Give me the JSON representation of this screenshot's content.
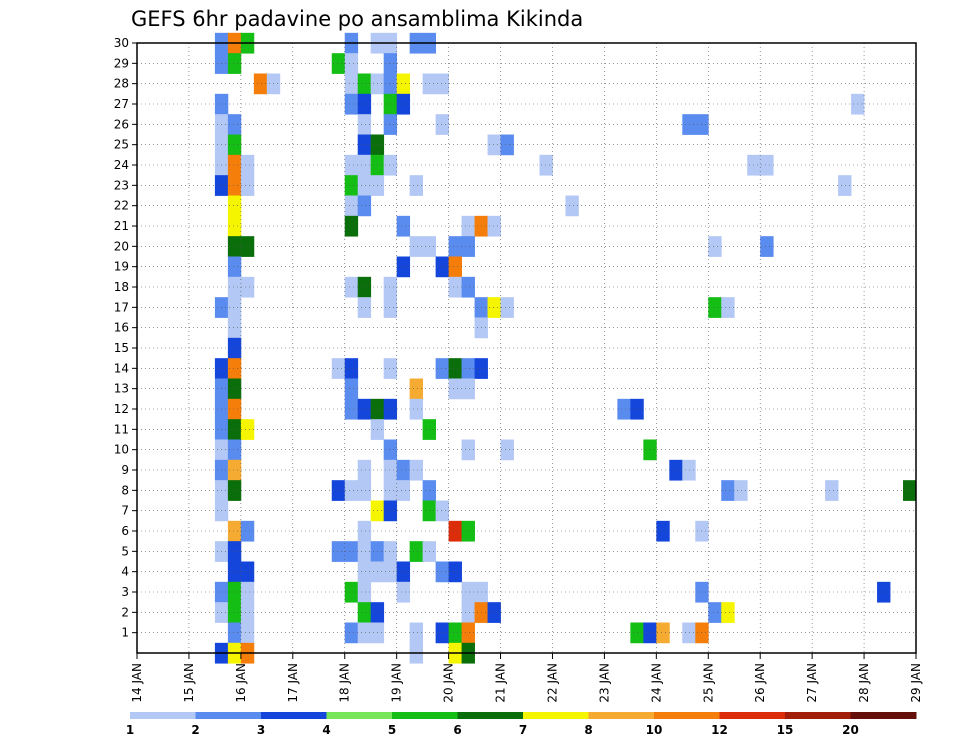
{
  "chart_data": {
    "type": "heatmap",
    "title": "GEFS 6hr padavine po ansamblima Kikinda",
    "xlabel": "",
    "ylabel": "",
    "x_tick_labels": [
      "14 JAN",
      "15 JAN",
      "16 JAN",
      "17 JAN",
      "18 JAN",
      "19 JAN",
      "20 JAN",
      "21 JAN",
      "22 JAN",
      "23 JAN",
      "24 JAN",
      "25 JAN",
      "26 JAN",
      "27 JAN",
      "28 JAN",
      "29 JAN"
    ],
    "x_days_range": [
      14,
      29
    ],
    "y_tick_labels": [
      "1",
      "2",
      "3",
      "4",
      "5",
      "6",
      "7",
      "8",
      "9",
      "10",
      "11",
      "12",
      "13",
      "14",
      "15",
      "16",
      "17",
      "18",
      "19",
      "20",
      "21",
      "22",
      "23",
      "24",
      "25",
      "26",
      "27",
      "28",
      "29",
      "30"
    ],
    "y_range": [
      0,
      30
    ],
    "time_step_hours": 6,
    "grid": true,
    "legend": {
      "placement": "bottom",
      "labels": [
        "1",
        "2",
        "3",
        "4",
        "5",
        "6",
        "7",
        "8",
        "10",
        "12",
        "15",
        "20"
      ],
      "colors": [
        "#b4c8f5",
        "#5a8cf0",
        "#1446dc",
        "#78e65a",
        "#14be14",
        "#0a6e0a",
        "#f5f500",
        "#f5aa32",
        "#f57d0a",
        "#dc2d0a",
        "#a01e0a",
        "#640f0a"
      ]
    },
    "cells": [
      [
        30,
        15.5,
        2
      ],
      [
        30,
        15.75,
        10
      ],
      [
        30,
        16,
        5
      ],
      [
        30,
        18,
        2
      ],
      [
        30,
        18.5,
        1
      ],
      [
        30,
        18.75,
        1
      ],
      [
        30,
        19.25,
        2
      ],
      [
        30,
        19.5,
        2
      ],
      [
        29,
        15.5,
        2
      ],
      [
        29,
        15.75,
        5
      ],
      [
        29,
        17.75,
        5
      ],
      [
        29,
        18,
        1
      ],
      [
        29,
        18.75,
        2
      ],
      [
        28,
        16.25,
        10
      ],
      [
        28,
        16.5,
        1
      ],
      [
        28,
        18,
        1
      ],
      [
        28,
        18.25,
        5
      ],
      [
        28,
        18.5,
        1
      ],
      [
        28,
        18.75,
        2
      ],
      [
        28,
        19,
        7
      ],
      [
        28,
        19.5,
        1
      ],
      [
        28,
        19.75,
        1
      ],
      [
        27,
        15.5,
        2
      ],
      [
        27,
        18,
        2
      ],
      [
        27,
        18.25,
        3
      ],
      [
        27,
        18.75,
        5
      ],
      [
        27,
        19,
        3
      ],
      [
        27,
        27.75,
        1
      ],
      [
        26,
        15.5,
        1
      ],
      [
        26,
        15.75,
        2
      ],
      [
        26,
        18.25,
        1
      ],
      [
        26,
        18.75,
        2
      ],
      [
        26,
        19.75,
        1
      ],
      [
        26,
        24.5,
        2
      ],
      [
        26,
        24.75,
        2
      ],
      [
        25,
        15.5,
        1
      ],
      [
        25,
        15.75,
        5
      ],
      [
        25,
        18.25,
        3
      ],
      [
        25,
        18.5,
        6
      ],
      [
        25,
        20.75,
        1
      ],
      [
        25,
        21,
        2
      ],
      [
        24,
        15.5,
        1
      ],
      [
        24,
        15.75,
        10
      ],
      [
        24,
        16,
        1
      ],
      [
        24,
        18,
        1
      ],
      [
        24,
        18.25,
        1
      ],
      [
        24,
        18.5,
        5
      ],
      [
        24,
        18.75,
        1
      ],
      [
        24,
        21.75,
        1
      ],
      [
        24,
        25.75,
        1
      ],
      [
        24,
        26,
        1
      ],
      [
        23,
        15.5,
        3
      ],
      [
        23,
        15.75,
        10
      ],
      [
        23,
        16,
        1
      ],
      [
        23,
        18,
        5
      ],
      [
        23,
        18.25,
        1
      ],
      [
        23,
        18.5,
        1
      ],
      [
        23,
        19.25,
        1
      ],
      [
        23,
        27.5,
        1
      ],
      [
        22,
        15.75,
        7
      ],
      [
        22,
        18,
        1
      ],
      [
        22,
        18.25,
        2
      ],
      [
        22,
        22.25,
        1
      ],
      [
        21,
        15.75,
        7
      ],
      [
        21,
        18,
        6
      ],
      [
        21,
        19,
        2
      ],
      [
        21,
        20.25,
        1
      ],
      [
        21,
        20.5,
        10
      ],
      [
        21,
        20.75,
        1
      ],
      [
        20,
        15.75,
        6
      ],
      [
        20,
        16,
        6
      ],
      [
        20,
        19.25,
        1
      ],
      [
        20,
        19.5,
        1
      ],
      [
        20,
        20,
        2
      ],
      [
        20,
        20.25,
        2
      ],
      [
        20,
        25,
        1
      ],
      [
        20,
        26,
        2
      ],
      [
        19,
        15.75,
        2
      ],
      [
        19,
        19,
        3
      ],
      [
        19,
        19.75,
        3
      ],
      [
        19,
        20,
        10
      ],
      [
        18,
        15.75,
        1
      ],
      [
        18,
        16,
        1
      ],
      [
        18,
        18,
        1
      ],
      [
        18,
        18.25,
        6
      ],
      [
        18,
        18.75,
        1
      ],
      [
        18,
        20,
        1
      ],
      [
        18,
        20.25,
        2
      ],
      [
        17,
        15.5,
        2
      ],
      [
        17,
        15.75,
        1
      ],
      [
        17,
        18.25,
        1
      ],
      [
        17,
        18.75,
        1
      ],
      [
        17,
        20.5,
        2
      ],
      [
        17,
        20.75,
        7
      ],
      [
        17,
        21,
        1
      ],
      [
        17,
        25,
        5
      ],
      [
        17,
        25.25,
        1
      ],
      [
        16,
        15.75,
        1
      ],
      [
        16,
        20.5,
        1
      ],
      [
        15,
        15.75,
        3
      ],
      [
        14,
        15.5,
        3
      ],
      [
        14,
        15.75,
        10
      ],
      [
        14,
        17.75,
        1
      ],
      [
        14,
        18,
        3
      ],
      [
        14,
        18.75,
        1
      ],
      [
        14,
        19.75,
        2
      ],
      [
        14,
        20,
        6
      ],
      [
        14,
        20.25,
        2
      ],
      [
        14,
        20.5,
        3
      ],
      [
        13,
        15.5,
        2
      ],
      [
        13,
        15.75,
        6
      ],
      [
        13,
        18,
        2
      ],
      [
        13,
        19.25,
        8
      ],
      [
        13,
        20,
        1
      ],
      [
        13,
        20.25,
        1
      ],
      [
        12,
        15.5,
        2
      ],
      [
        12,
        15.75,
        10
      ],
      [
        12,
        18,
        2
      ],
      [
        12,
        18.25,
        3
      ],
      [
        12,
        18.5,
        6
      ],
      [
        12,
        18.75,
        3
      ],
      [
        12,
        19.25,
        1
      ],
      [
        12,
        23.25,
        2
      ],
      [
        12,
        23.5,
        3
      ],
      [
        11,
        15.5,
        2
      ],
      [
        11,
        15.75,
        6
      ],
      [
        11,
        16,
        7
      ],
      [
        11,
        18.5,
        1
      ],
      [
        11,
        19.5,
        5
      ],
      [
        10,
        15.5,
        1
      ],
      [
        10,
        15.75,
        2
      ],
      [
        10,
        18.75,
        2
      ],
      [
        10,
        20.25,
        1
      ],
      [
        10,
        21,
        1
      ],
      [
        10,
        23.75,
        5
      ],
      [
        9,
        15.5,
        2
      ],
      [
        9,
        15.75,
        8
      ],
      [
        9,
        18.25,
        1
      ],
      [
        9,
        18.75,
        1
      ],
      [
        9,
        19,
        2
      ],
      [
        9,
        19.25,
        1
      ],
      [
        9,
        24.25,
        3
      ],
      [
        9,
        24.5,
        1
      ],
      [
        8,
        15.5,
        1
      ],
      [
        8,
        15.75,
        6
      ],
      [
        8,
        17.75,
        3
      ],
      [
        8,
        18,
        1
      ],
      [
        8,
        18.25,
        1
      ],
      [
        8,
        18.75,
        1
      ],
      [
        8,
        19,
        1
      ],
      [
        8,
        19.5,
        2
      ],
      [
        8,
        25.25,
        2
      ],
      [
        8,
        25.5,
        1
      ],
      [
        8,
        27.25,
        1
      ],
      [
        8,
        28.75,
        6
      ],
      [
        7,
        15.5,
        1
      ],
      [
        7,
        18.5,
        7
      ],
      [
        7,
        18.75,
        3
      ],
      [
        7,
        19.5,
        5
      ],
      [
        7,
        19.75,
        1
      ],
      [
        6,
        15.75,
        8
      ],
      [
        6,
        16,
        2
      ],
      [
        6,
        18.25,
        1
      ],
      [
        6,
        20,
        13
      ],
      [
        6,
        20.25,
        5
      ],
      [
        6,
        24,
        3
      ],
      [
        6,
        24.75,
        1
      ],
      [
        5,
        15.5,
        1
      ],
      [
        5,
        15.75,
        3
      ],
      [
        5,
        17.75,
        2
      ],
      [
        5,
        18,
        2
      ],
      [
        5,
        18.25,
        1
      ],
      [
        5,
        18.5,
        2
      ],
      [
        5,
        18.75,
        1
      ],
      [
        5,
        19.25,
        5
      ],
      [
        5,
        19.5,
        1
      ],
      [
        4,
        15.75,
        3
      ],
      [
        4,
        16,
        3
      ],
      [
        4,
        18.25,
        1
      ],
      [
        4,
        18.5,
        1
      ],
      [
        4,
        18.75,
        1
      ],
      [
        4,
        19,
        3
      ],
      [
        4,
        19.75,
        2
      ],
      [
        4,
        20,
        3
      ],
      [
        3,
        15.5,
        2
      ],
      [
        3,
        15.75,
        5
      ],
      [
        3,
        16,
        1
      ],
      [
        3,
        18,
        5
      ],
      [
        3,
        18.25,
        1
      ],
      [
        3,
        19,
        1
      ],
      [
        3,
        20.25,
        1
      ],
      [
        3,
        20.5,
        1
      ],
      [
        3,
        24.75,
        2
      ],
      [
        3,
        28.25,
        3
      ],
      [
        2,
        15.5,
        1
      ],
      [
        2,
        15.75,
        5
      ],
      [
        2,
        16,
        1
      ],
      [
        2,
        18.25,
        5
      ],
      [
        2,
        18.5,
        3
      ],
      [
        2,
        20.25,
        1
      ],
      [
        2,
        20.5,
        10
      ],
      [
        2,
        20.75,
        3
      ],
      [
        2,
        25,
        2
      ],
      [
        2,
        25.25,
        7
      ],
      [
        1,
        15.75,
        2
      ],
      [
        1,
        16,
        1
      ],
      [
        1,
        18,
        2
      ],
      [
        1,
        18.25,
        1
      ],
      [
        1,
        18.5,
        1
      ],
      [
        1,
        19.25,
        1
      ],
      [
        1,
        19.75,
        3
      ],
      [
        1,
        20,
        5
      ],
      [
        1,
        20.25,
        10
      ],
      [
        1,
        23.5,
        5
      ],
      [
        1,
        23.75,
        3
      ],
      [
        1,
        24,
        8
      ],
      [
        1,
        24.5,
        1
      ],
      [
        1,
        24.75,
        10
      ],
      [
        0,
        15.5,
        3
      ],
      [
        0,
        15.75,
        7
      ],
      [
        0,
        16,
        10
      ],
      [
        0,
        19.25,
        1
      ],
      [
        0,
        20,
        7
      ],
      [
        0,
        20.25,
        6
      ]
    ]
  }
}
